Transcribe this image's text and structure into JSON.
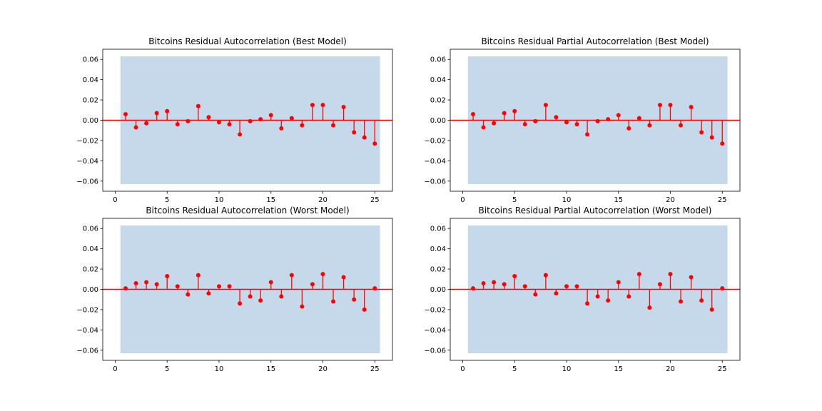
{
  "chart_data": [
    {
      "type": "stem",
      "title": "Bitcoins Residual Autocorrelation (Best Model)",
      "xlabel": "",
      "ylabel": "",
      "xlim": [
        -1.2,
        26.7
      ],
      "ylim": [
        -0.07,
        0.07
      ],
      "x_ticks": [
        0,
        5,
        10,
        15,
        20,
        25
      ],
      "x_tick_labels": [
        "0",
        "5",
        "10",
        "15",
        "20",
        "25"
      ],
      "y_ticks": [
        -0.06,
        -0.04,
        -0.02,
        0.0,
        0.02,
        0.04,
        0.06
      ],
      "y_tick_labels": [
        "−0.06",
        "−0.04",
        "−0.02",
        "0.00",
        "0.02",
        "0.04",
        "0.06"
      ],
      "confidence_band": {
        "x_range": [
          0.5,
          25.5
        ],
        "lower": -0.063,
        "upper": 0.063,
        "color": "#c5d9ea"
      },
      "baseline": 0,
      "lags": [
        1,
        2,
        3,
        4,
        5,
        6,
        7,
        8,
        9,
        10,
        11,
        12,
        13,
        14,
        15,
        16,
        17,
        18,
        19,
        20,
        21,
        22,
        23,
        24,
        25
      ],
      "values": [
        0.006,
        -0.007,
        -0.003,
        0.007,
        0.009,
        -0.004,
        -0.001,
        0.014,
        0.003,
        -0.002,
        -0.004,
        -0.014,
        -0.001,
        0.001,
        0.005,
        -0.008,
        0.002,
        -0.005,
        0.015,
        0.015,
        -0.005,
        0.013,
        -0.012,
        -0.017,
        -0.023
      ],
      "color": "#ff0000"
    },
    {
      "type": "stem",
      "title": "Bitcoins Residual Partial Autocorrelation (Best Model)",
      "xlabel": "",
      "ylabel": "",
      "xlim": [
        -1.2,
        26.7
      ],
      "ylim": [
        -0.07,
        0.07
      ],
      "x_ticks": [
        0,
        5,
        10,
        15,
        20,
        25
      ],
      "x_tick_labels": [
        "0",
        "5",
        "10",
        "15",
        "20",
        "25"
      ],
      "y_ticks": [
        -0.06,
        -0.04,
        -0.02,
        0.0,
        0.02,
        0.04,
        0.06
      ],
      "y_tick_labels": [
        "−0.06",
        "−0.04",
        "−0.02",
        "0.00",
        "0.02",
        "0.04",
        "0.06"
      ],
      "confidence_band": {
        "x_range": [
          0.5,
          25.5
        ],
        "lower": -0.063,
        "upper": 0.063,
        "color": "#c5d9ea"
      },
      "baseline": 0,
      "lags": [
        1,
        2,
        3,
        4,
        5,
        6,
        7,
        8,
        9,
        10,
        11,
        12,
        13,
        14,
        15,
        16,
        17,
        18,
        19,
        20,
        21,
        22,
        23,
        24,
        25
      ],
      "values": [
        0.006,
        -0.007,
        -0.003,
        0.007,
        0.009,
        -0.004,
        -0.001,
        0.015,
        0.003,
        -0.002,
        -0.004,
        -0.014,
        -0.001,
        0.001,
        0.005,
        -0.008,
        0.002,
        -0.005,
        0.015,
        0.015,
        -0.005,
        0.013,
        -0.012,
        -0.017,
        -0.023
      ],
      "color": "#ff0000"
    },
    {
      "type": "stem",
      "title": "Bitcoins Residual Autocorrelation (Worst Model)",
      "xlabel": "",
      "ylabel": "",
      "xlim": [
        -1.2,
        26.7
      ],
      "ylim": [
        -0.07,
        0.07
      ],
      "x_ticks": [
        0,
        5,
        10,
        15,
        20,
        25
      ],
      "x_tick_labels": [
        "0",
        "5",
        "10",
        "15",
        "20",
        "25"
      ],
      "y_ticks": [
        -0.06,
        -0.04,
        -0.02,
        0.0,
        0.02,
        0.04,
        0.06
      ],
      "y_tick_labels": [
        "−0.06",
        "−0.04",
        "−0.02",
        "0.00",
        "0.02",
        "0.04",
        "0.06"
      ],
      "confidence_band": {
        "x_range": [
          0.5,
          25.5
        ],
        "lower": -0.063,
        "upper": 0.063,
        "color": "#c5d9ea"
      },
      "baseline": 0,
      "lags": [
        1,
        2,
        3,
        4,
        5,
        6,
        7,
        8,
        9,
        10,
        11,
        12,
        13,
        14,
        15,
        16,
        17,
        18,
        19,
        20,
        21,
        22,
        23,
        24,
        25
      ],
      "values": [
        0.001,
        0.006,
        0.007,
        0.005,
        0.013,
        0.003,
        -0.005,
        0.014,
        -0.004,
        0.003,
        0.003,
        -0.014,
        -0.007,
        -0.011,
        0.007,
        -0.007,
        0.014,
        -0.017,
        0.005,
        0.015,
        -0.012,
        0.012,
        -0.01,
        -0.02,
        0.001
      ],
      "color": "#ff0000"
    },
    {
      "type": "stem",
      "title": "Bitcoins Residual Partial Autocorrelation (Worst Model)",
      "xlabel": "",
      "ylabel": "",
      "xlim": [
        -1.2,
        26.7
      ],
      "ylim": [
        -0.07,
        0.07
      ],
      "x_ticks": [
        0,
        5,
        10,
        15,
        20,
        25
      ],
      "x_tick_labels": [
        "0",
        "5",
        "10",
        "15",
        "20",
        "25"
      ],
      "y_ticks": [
        -0.06,
        -0.04,
        -0.02,
        0.0,
        0.02,
        0.04,
        0.06
      ],
      "y_tick_labels": [
        "−0.06",
        "−0.04",
        "−0.02",
        "0.00",
        "0.02",
        "0.04",
        "0.06"
      ],
      "confidence_band": {
        "x_range": [
          0.5,
          25.5
        ],
        "lower": -0.063,
        "upper": 0.063,
        "color": "#c5d9ea"
      },
      "baseline": 0,
      "lags": [
        1,
        2,
        3,
        4,
        5,
        6,
        7,
        8,
        9,
        10,
        11,
        12,
        13,
        14,
        15,
        16,
        17,
        18,
        19,
        20,
        21,
        22,
        23,
        24,
        25
      ],
      "values": [
        0.001,
        0.006,
        0.007,
        0.005,
        0.013,
        0.003,
        -0.005,
        0.014,
        -0.004,
        0.003,
        0.003,
        -0.014,
        -0.007,
        -0.011,
        0.007,
        -0.007,
        0.015,
        -0.018,
        0.005,
        0.015,
        -0.012,
        0.012,
        -0.011,
        -0.02,
        0.001
      ],
      "color": "#ff0000"
    }
  ]
}
